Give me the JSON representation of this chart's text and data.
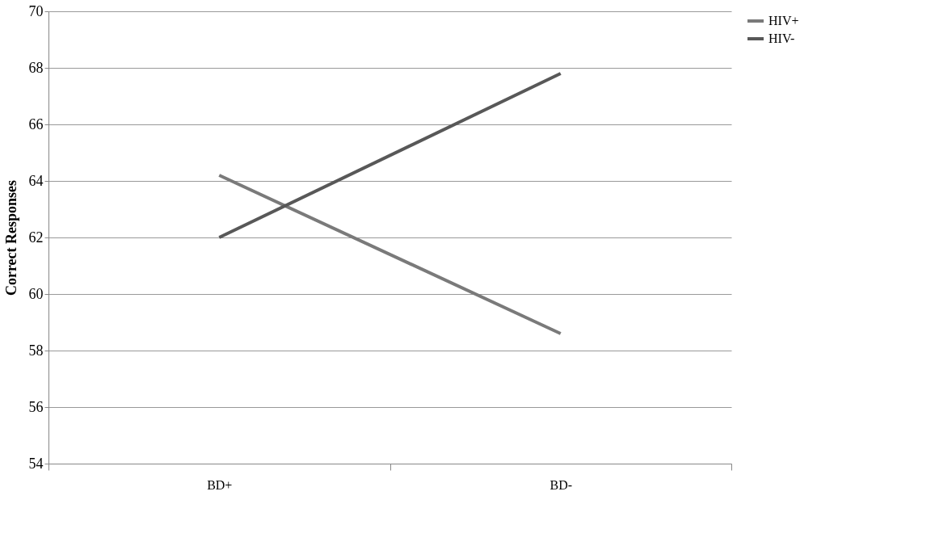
{
  "chart_data": {
    "type": "line",
    "ylabel": "Correct Responses",
    "categories": [
      "BD+",
      "BD-"
    ],
    "series": [
      {
        "name": "HIV+",
        "color": "#7a7a7a",
        "values": [
          64.2,
          58.6
        ]
      },
      {
        "name": "HIV-",
        "color": "#585858",
        "values": [
          62,
          67.8
        ]
      }
    ],
    "ylim": [
      54,
      70
    ],
    "yticks": [
      54,
      56,
      58,
      60,
      62,
      64,
      66,
      68,
      70
    ],
    "grid": "y",
    "legend": "right",
    "marker": "none",
    "line_style": "solid"
  }
}
